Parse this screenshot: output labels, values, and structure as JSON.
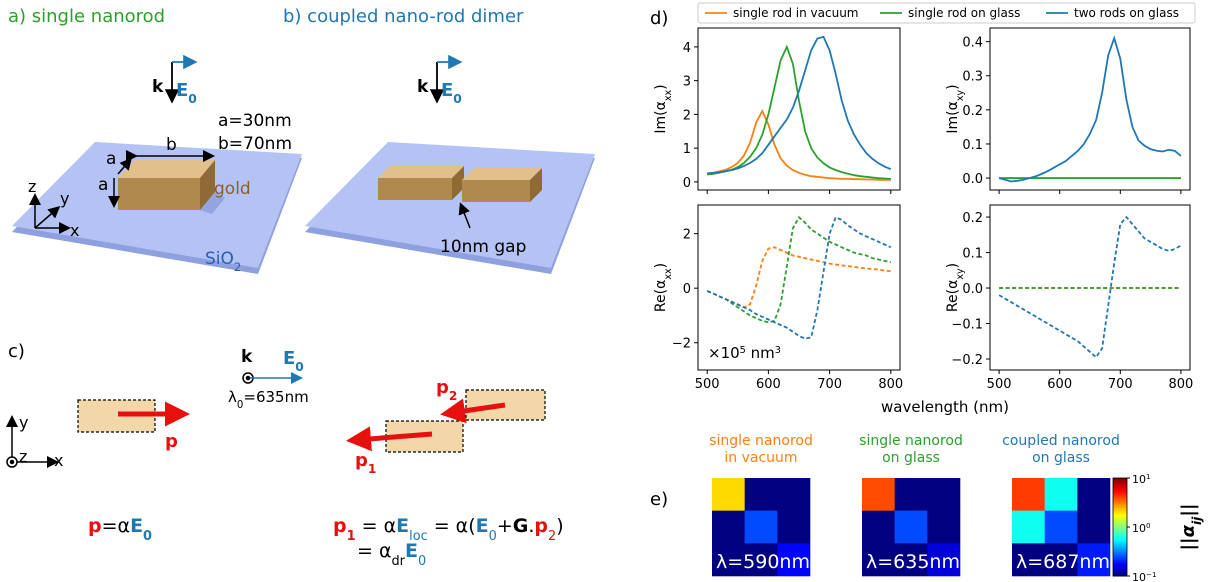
{
  "diagram": {
    "a": {
      "title": "a) single nanorod",
      "k": "k",
      "E": "E",
      "E_sub": "0",
      "dims": [
        "a=30nm",
        "b=70nm"
      ],
      "rod_labels": [
        "a",
        "a",
        "b"
      ],
      "material": "gold",
      "substrate": "SiO",
      "substrate_sub": "2",
      "axes": [
        "z",
        "y",
        "x"
      ]
    },
    "b": {
      "title": "b) coupled nano-rod dimer",
      "k": "k",
      "E": "E",
      "E_sub": "0",
      "gap": "10nm gap"
    },
    "c": {
      "label": "c)",
      "k": "k",
      "E": "E",
      "E_sub": "0",
      "wavelength": [
        "λ",
        "0",
        "=635nm"
      ],
      "axes": [
        "y",
        "z",
        "x"
      ],
      "dipoles": [
        [
          "p"
        ],
        [
          "p",
          "2"
        ],
        [
          "p",
          "1"
        ]
      ],
      "equation_1": [
        "p",
        "=α",
        "E",
        "0"
      ],
      "equation_2": [
        [
          "p",
          "1",
          " = α",
          "E",
          "loc",
          " = α(",
          "E",
          "0",
          "+",
          "G",
          ".",
          "p",
          "2",
          ")"
        ],
        [
          "= α",
          "dr",
          "E",
          "0"
        ]
      ]
    }
  },
  "chart_data": [
    {
      "type": "line",
      "panel_label": "d)",
      "legend": "upper center",
      "ylabel": [
        "Im(α",
        "xx",
        ")"
      ],
      "x": [
        500,
        510,
        520,
        530,
        540,
        550,
        560,
        570,
        580,
        590,
        600,
        610,
        620,
        630,
        640,
        650,
        660,
        670,
        680,
        690,
        700,
        710,
        720,
        730,
        740,
        750,
        760,
        770,
        780,
        790,
        800
      ],
      "xlim": [
        485,
        815
      ],
      "xticks": [
        500,
        600,
        700,
        800
      ],
      "ylim": [
        -0.24,
        4.56
      ],
      "yticks": [
        0,
        1,
        2,
        3,
        4
      ],
      "series": [
        {
          "name": "single rod in vacuum",
          "color": "#ff7f0e",
          "values": [
            0.25,
            0.27,
            0.31,
            0.36,
            0.44,
            0.56,
            0.78,
            1.15,
            1.76,
            2.1,
            1.7,
            1.1,
            0.7,
            0.48,
            0.35,
            0.27,
            0.21,
            0.17,
            0.15,
            0.13,
            0.11,
            0.1,
            0.09,
            0.09,
            0.08,
            0.08,
            0.07,
            0.07,
            0.06,
            0.06,
            0.06
          ]
        },
        {
          "name": "single rod on glass",
          "color": "#2ca02c",
          "values": [
            0.22,
            0.24,
            0.27,
            0.31,
            0.36,
            0.44,
            0.56,
            0.74,
            1.0,
            1.4,
            2.0,
            2.8,
            3.6,
            4.0,
            3.5,
            2.4,
            1.5,
            1.0,
            0.72,
            0.55,
            0.43,
            0.35,
            0.29,
            0.24,
            0.2,
            0.17,
            0.15,
            0.13,
            0.11,
            0.1,
            0.09
          ]
        },
        {
          "name": "two rods on glass",
          "color": "#1f77b4",
          "values": [
            0.25,
            0.27,
            0.29,
            0.32,
            0.35,
            0.4,
            0.47,
            0.56,
            0.68,
            0.85,
            1.1,
            1.35,
            1.6,
            1.85,
            2.2,
            2.7,
            3.3,
            3.9,
            4.25,
            4.3,
            3.9,
            3.2,
            2.4,
            1.8,
            1.4,
            1.1,
            0.85,
            0.68,
            0.55,
            0.45,
            0.38
          ]
        }
      ]
    },
    {
      "type": "line",
      "ylabel": [
        "Im(α",
        "xy",
        ")"
      ],
      "x": [
        500,
        510,
        520,
        530,
        540,
        550,
        560,
        570,
        580,
        590,
        600,
        610,
        620,
        630,
        640,
        650,
        660,
        670,
        680,
        690,
        700,
        710,
        720,
        730,
        740,
        750,
        760,
        770,
        780,
        790,
        800
      ],
      "xlim": [
        485,
        815
      ],
      "xticks": [
        500,
        600,
        700,
        800
      ],
      "ylim": [
        -0.035,
        0.44
      ],
      "yticks": [
        {
          "value": 0,
          "label": "0.0"
        },
        0.1,
        0.2,
        0.3,
        0.4
      ],
      "series": [
        {
          "color": "#ff7f0e",
          "values": [
            0,
            0,
            0,
            0,
            0,
            0,
            0,
            0,
            0,
            0,
            0,
            0,
            0,
            0,
            0,
            0,
            0,
            0,
            0,
            0,
            0,
            0,
            0,
            0,
            0,
            0,
            0,
            0,
            0,
            0,
            0
          ]
        },
        {
          "color": "#2ca02c",
          "values": [
            0,
            0,
            0,
            0,
            0,
            0,
            0,
            0,
            0,
            0,
            0,
            0,
            0,
            0,
            0,
            0,
            0,
            0,
            0,
            0,
            0,
            0,
            0,
            0,
            0,
            0,
            0,
            0,
            0,
            0,
            0
          ]
        },
        {
          "color": "#1f77b4",
          "values": [
            0,
            -0.005,
            -0.01,
            -0.008,
            -0.005,
            0,
            0.005,
            0.012,
            0.02,
            0.03,
            0.04,
            0.05,
            0.065,
            0.08,
            0.1,
            0.13,
            0.17,
            0.25,
            0.36,
            0.41,
            0.35,
            0.23,
            0.15,
            0.11,
            0.095,
            0.085,
            0.08,
            0.078,
            0.083,
            0.08,
            0.065
          ]
        }
      ]
    },
    {
      "type": "line",
      "ylabel": [
        "Re(α",
        "xx",
        ")"
      ],
      "xlabel": "wavelength (nm)",
      "annotation": [
        "×10",
        "5",
        " nm",
        "3"
      ],
      "dashed": true,
      "x": [
        500,
        510,
        520,
        530,
        540,
        550,
        560,
        570,
        580,
        590,
        600,
        610,
        620,
        630,
        640,
        650,
        660,
        670,
        680,
        690,
        700,
        710,
        720,
        730,
        740,
        750,
        760,
        770,
        780,
        790,
        800
      ],
      "xlim": [
        485,
        815
      ],
      "xticks": [
        500,
        600,
        700,
        800
      ],
      "ylim": [
        -3.0,
        3.05
      ],
      "yticks": [
        {
          "value": -2,
          "label": "−2"
        },
        0,
        2
      ],
      "series": [
        {
          "color": "#ff7f0e",
          "values": [
            -0.1,
            -0.2,
            -0.3,
            -0.4,
            -0.5,
            -0.6,
            -0.7,
            -0.6,
            0.1,
            1.0,
            1.45,
            1.5,
            1.4,
            1.3,
            1.2,
            1.15,
            1.1,
            1.05,
            1.0,
            0.95,
            0.9,
            0.87,
            0.84,
            0.81,
            0.78,
            0.75,
            0.72,
            0.7,
            0.68,
            0.65,
            0.62
          ]
        },
        {
          "color": "#2ca02c",
          "values": [
            -0.1,
            -0.2,
            -0.3,
            -0.4,
            -0.55,
            -0.7,
            -0.85,
            -1.0,
            -1.1,
            -1.2,
            -1.25,
            -1.2,
            -0.6,
            0.8,
            2.2,
            2.6,
            2.4,
            2.15,
            2.0,
            1.85,
            1.7,
            1.6,
            1.5,
            1.4,
            1.3,
            1.25,
            1.2,
            1.1,
            1.05,
            1.0,
            0.95
          ]
        },
        {
          "color": "#1f77b4",
          "values": [
            -0.1,
            -0.2,
            -0.3,
            -0.4,
            -0.5,
            -0.6,
            -0.7,
            -0.8,
            -0.95,
            -1.05,
            -1.15,
            -1.25,
            -1.35,
            -1.45,
            -1.6,
            -1.75,
            -1.85,
            -1.8,
            -0.8,
            0.6,
            2.0,
            2.6,
            2.5,
            2.3,
            2.15,
            2.0,
            1.9,
            1.8,
            1.7,
            1.6,
            1.5
          ]
        }
      ]
    },
    {
      "type": "line",
      "ylabel": [
        "Re(α",
        "xy",
        ")"
      ],
      "dashed": true,
      "x": [
        500,
        510,
        520,
        530,
        540,
        550,
        560,
        570,
        580,
        590,
        600,
        610,
        620,
        630,
        640,
        650,
        660,
        670,
        680,
        690,
        700,
        710,
        720,
        730,
        740,
        750,
        760,
        770,
        780,
        790,
        800
      ],
      "xlim": [
        485,
        815
      ],
      "xticks": [
        500,
        600,
        700,
        800
      ],
      "ylim": [
        -0.231,
        0.234
      ],
      "yticks": [
        {
          "value": -0.2,
          "label": "−0.2"
        },
        {
          "value": -0.1,
          "label": "−0.1"
        },
        {
          "value": 0,
          "label": "0.0"
        },
        0.1,
        0.2
      ],
      "series": [
        {
          "color": "#ff7f0e",
          "values": [
            0,
            0,
            0,
            0,
            0,
            0,
            0,
            0,
            0,
            0,
            0,
            0,
            0,
            0,
            0,
            0,
            0,
            0,
            0,
            0,
            0,
            0,
            0,
            0,
            0,
            0,
            0,
            0,
            0,
            0,
            0
          ]
        },
        {
          "color": "#2ca02c",
          "values": [
            0,
            0,
            0,
            0,
            0,
            0,
            0,
            0,
            0,
            0,
            0,
            0,
            0,
            0,
            0,
            0,
            0,
            0,
            0,
            0,
            0,
            0,
            0,
            0,
            0,
            0,
            0,
            0,
            0,
            0,
            0
          ]
        },
        {
          "color": "#1f77b4",
          "values": [
            -0.02,
            -0.03,
            -0.04,
            -0.05,
            -0.06,
            -0.07,
            -0.08,
            -0.09,
            -0.1,
            -0.11,
            -0.12,
            -0.13,
            -0.14,
            -0.15,
            -0.165,
            -0.18,
            -0.195,
            -0.17,
            -0.05,
            0.07,
            0.18,
            0.2,
            0.18,
            0.16,
            0.14,
            0.13,
            0.12,
            0.11,
            0.105,
            0.11,
            0.12
          ]
        }
      ]
    },
    {
      "type": "heatmap",
      "panel_label": "e)",
      "title": [
        "single nanorod",
        "in vacuum"
      ],
      "title_color": "#ff7f0e",
      "annotation": "λ=590nm",
      "colormap": "jet",
      "log_scale": true,
      "zlim": [
        0.1,
        10
      ],
      "values": [
        [
          2.1,
          0.1,
          0.1
        ],
        [
          0.1,
          0.25,
          0.1
        ],
        [
          0.1,
          0.1,
          0.18
        ]
      ]
    },
    {
      "type": "heatmap",
      "title": [
        "single nanorod",
        "on glass"
      ],
      "title_color": "#2ca02c",
      "annotation": "λ=635nm",
      "colormap": "jet",
      "log_scale": true,
      "zlim": [
        0.1,
        10
      ],
      "values": [
        [
          4.0,
          0.1,
          0.1
        ],
        [
          0.1,
          0.25,
          0.1
        ],
        [
          0.1,
          0.1,
          0.15
        ]
      ]
    },
    {
      "type": "heatmap",
      "title": [
        "coupled nanorod",
        "on glass"
      ],
      "title_color": "#1f77b4",
      "annotation": "λ=687nm",
      "colormap": "jet",
      "log_scale": true,
      "zlim": [
        0.1,
        10
      ],
      "values": [
        [
          4.3,
          0.6,
          0.1
        ],
        [
          0.6,
          0.25,
          0.1
        ],
        [
          0.1,
          0.1,
          0.2
        ]
      ],
      "colorbar": {
        "ticks": [
          {
            "value": 10,
            "label": "10",
            "exponent": "1"
          },
          {
            "value": 1,
            "label": "10",
            "exponent": "0"
          },
          {
            "value": 0.1,
            "label": "10",
            "exponent": "−1"
          }
        ],
        "label": [
          "||α",
          "ij",
          "||"
        ]
      }
    }
  ]
}
